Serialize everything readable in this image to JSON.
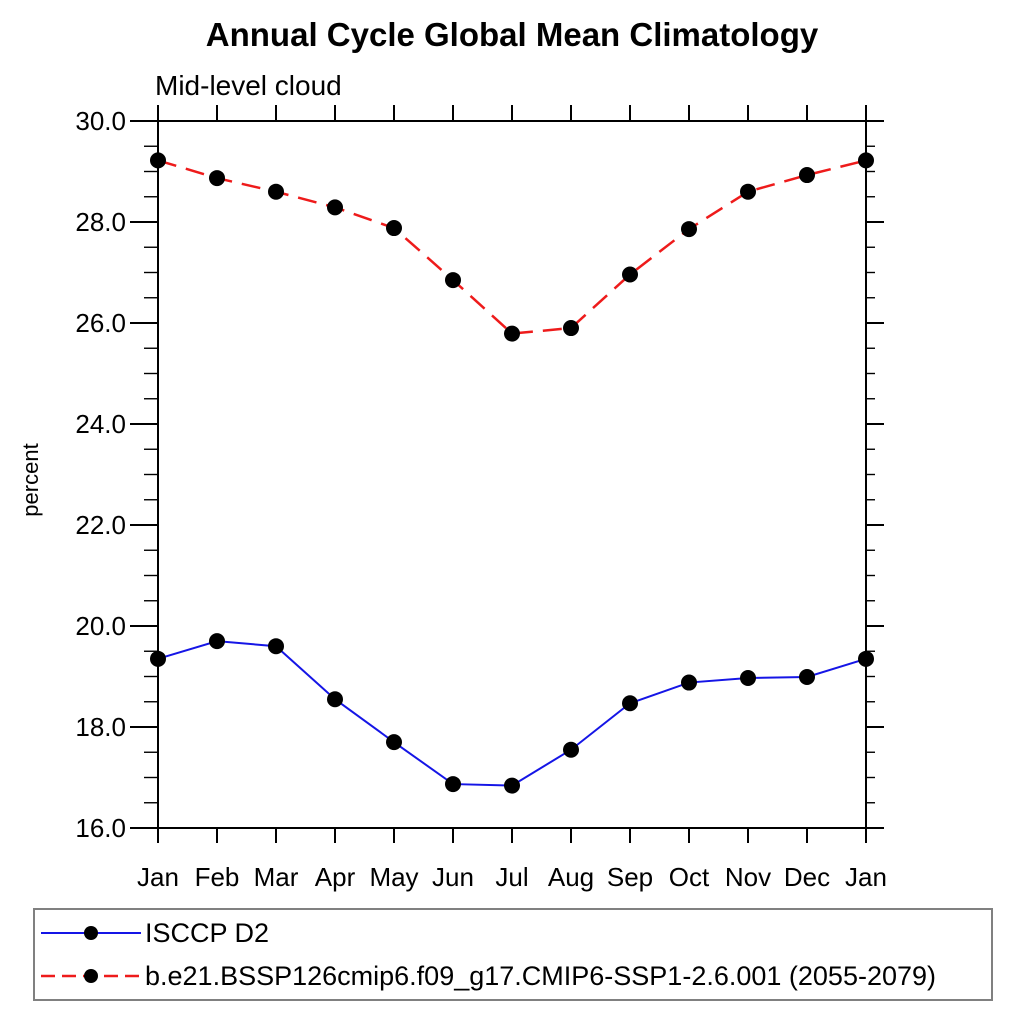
{
  "page": {
    "background": "#ffffff"
  },
  "header": {
    "title": "Annual Cycle Global Mean Climatology",
    "subtitle": "Mid-level cloud"
  },
  "chart_data": {
    "type": "line",
    "title": "Annual Cycle Global Mean Climatology",
    "subtitle": "Mid-level cloud",
    "xlabel": "",
    "ylabel": "percent",
    "categories": [
      "Jan",
      "Feb",
      "Mar",
      "Apr",
      "May",
      "Jun",
      "Jul",
      "Aug",
      "Sep",
      "Oct",
      "Nov",
      "Dec",
      "Jan"
    ],
    "ylim": [
      16.0,
      30.0
    ],
    "ytick_major_interval": 2.0,
    "ytick_minor_interval": 0.5,
    "ytick_labels": [
      "16.0",
      "18.0",
      "20.0",
      "22.0",
      "24.0",
      "26.0",
      "28.0",
      "30.0"
    ],
    "grid": false,
    "legend_position": "bottom-box",
    "axis_color": "#000000",
    "marker": "filled-circle",
    "marker_color": "#000000",
    "series": [
      {
        "name": "ISCCP D2",
        "color": "#1515e6",
        "line_style": "solid",
        "values": [
          19.35,
          19.7,
          19.6,
          18.55,
          17.7,
          16.87,
          16.84,
          17.55,
          18.47,
          18.88,
          18.97,
          18.99,
          19.35
        ]
      },
      {
        "name": "b.e21.BSSP126cmip6.f09_g17.CMIP6-SSP1-2.6.001 (2055-2079)",
        "color": "#ee1b1b",
        "line_style": "dashed",
        "values": [
          29.22,
          28.87,
          28.6,
          28.29,
          27.88,
          26.85,
          25.79,
          25.9,
          26.96,
          27.86,
          28.6,
          28.93,
          29.22
        ]
      }
    ]
  }
}
